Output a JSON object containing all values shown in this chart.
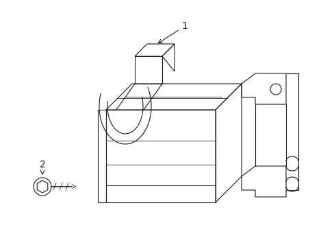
{
  "bg_color": "#ffffff",
  "line_color": "#1a1a1a",
  "line_width": 0.8,
  "label_1_text": "1",
  "label_2_text": "2"
}
